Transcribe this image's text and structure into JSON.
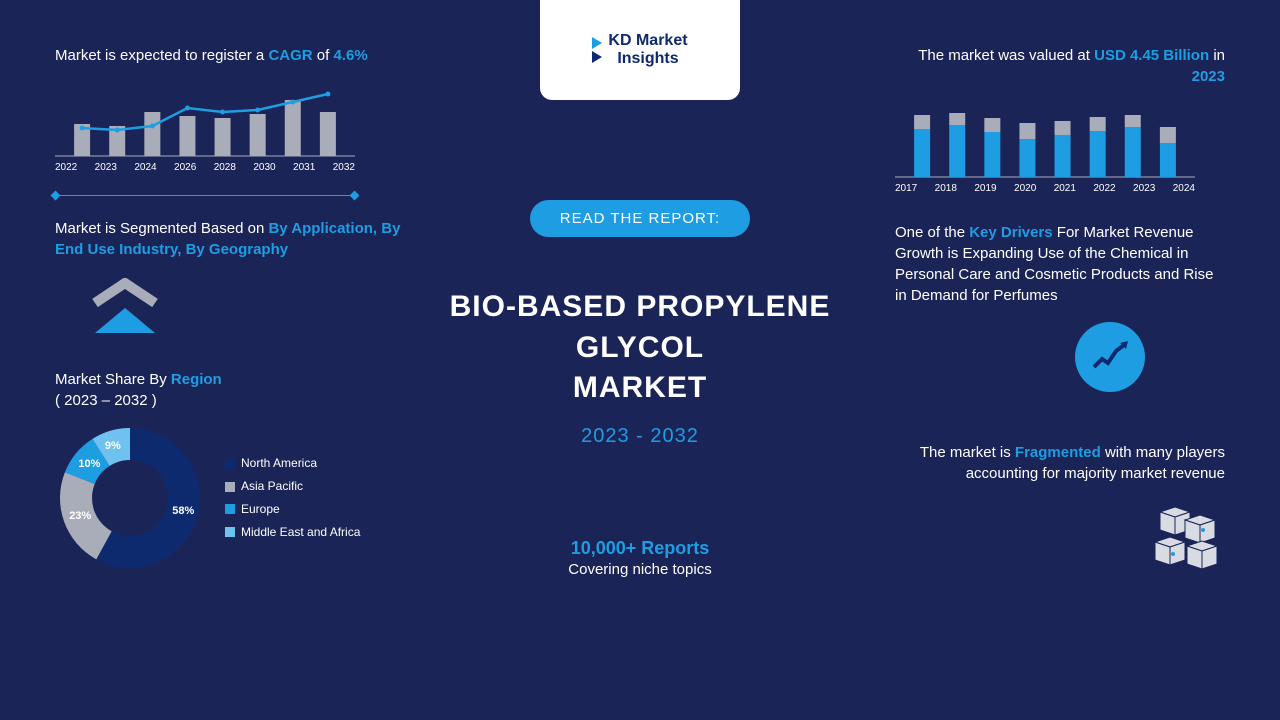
{
  "colors": {
    "bg": "#1a2456",
    "accent": "#1e9de3",
    "white": "#ffffff",
    "grey": "#a9adb9",
    "navy": "#0d2a6e"
  },
  "logo": {
    "brand": "KD Market",
    "sub": "Insights"
  },
  "center": {
    "read_btn": "READ THE REPORT:",
    "title_l1": "BIO-BASED PROPYLENE",
    "title_l2": "GLYCOL",
    "title_l3": "MARKET",
    "range": "2023 - 2032",
    "reports_count": "10,000+ Reports",
    "reports_sub": "Covering niche topics"
  },
  "left": {
    "cagr_pre": "Market is expected to register a ",
    "cagr_lbl": "CAGR",
    "cagr_mid": " of ",
    "cagr_val": "4.6%",
    "barline": {
      "type": "bar-with-line",
      "years": [
        "2022",
        "2023",
        "2024",
        "2026",
        "2028",
        "2030",
        "2031",
        "2032"
      ],
      "bars": [
        32,
        30,
        44,
        40,
        38,
        42,
        56,
        44
      ],
      "line": [
        28,
        26,
        30,
        48,
        44,
        46,
        54,
        62
      ],
      "bar_color": "#a9adb9",
      "line_color": "#1e9de3",
      "ymax": 70
    },
    "seg_pre": "Market is Segmented Based on ",
    "seg_val": "By Application, By End Use Industry, By Geography",
    "region_pre": "Market Share By ",
    "region_hl": "Region",
    "region_range": "( 2023 – 2032 )",
    "donut": {
      "type": "donut",
      "slices": [
        {
          "label": "North America",
          "pct": 58,
          "color": "#0d2a6e"
        },
        {
          "label": "Asia Pacific",
          "pct": 23,
          "color": "#a9adb9"
        },
        {
          "label": "Europe",
          "pct": 10,
          "color": "#1e9de3"
        },
        {
          "label": "Middle East and Africa",
          "pct": 9,
          "color": "#6fc2ef"
        }
      ],
      "inner_radius": 38,
      "outer_radius": 70
    }
  },
  "right": {
    "val_pre": "The market was valued at ",
    "val_hl": "USD 4.45 Billion",
    "val_mid": " in ",
    "val_yr": "2023",
    "stack": {
      "type": "stacked-bar",
      "years": [
        "2017",
        "2018",
        "2019",
        "2020",
        "2021",
        "2022",
        "2023",
        "2024"
      ],
      "lower": [
        48,
        52,
        45,
        38,
        42,
        46,
        50,
        34
      ],
      "upper": [
        14,
        12,
        14,
        16,
        14,
        14,
        12,
        16
      ],
      "lower_color": "#1e9de3",
      "upper_color": "#a9adb9",
      "ymax": 70
    },
    "driver_pre": "One of the ",
    "driver_hl": "Key Drivers",
    "driver_rest": " For Market Revenue Growth is Expanding Use of the Chemical in Personal Care and Cosmetic Products and Rise in Demand for Perfumes",
    "frag_pre": "The market is ",
    "frag_hl": "Fragmented",
    "frag_rest": " with many players accounting for majority market revenue"
  }
}
